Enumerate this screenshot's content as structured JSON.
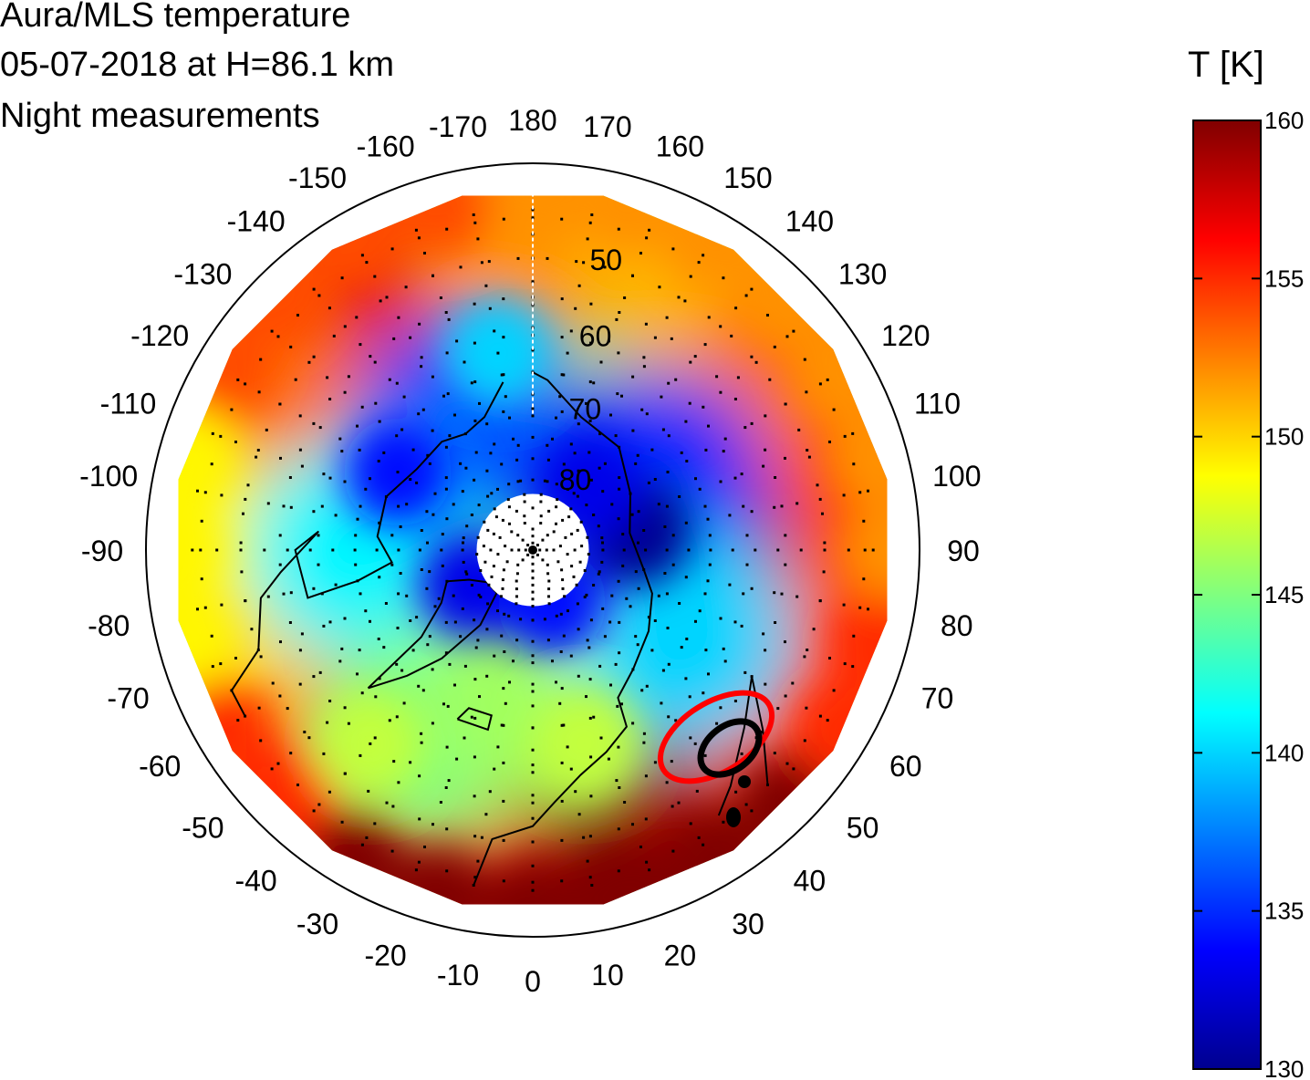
{
  "chart_data": {
    "type": "heatmap",
    "projection": "north-polar-stereographic",
    "title_lines": [
      "Aura/MLS  temperature",
      "05-07-2018 at H=86.1 km",
      "Night measurements"
    ],
    "colorbar": {
      "label": "T [K]",
      "range": [
        130,
        160
      ],
      "ticks": [
        160,
        155,
        150,
        145,
        140,
        135,
        130
      ],
      "colormap": "jet"
    },
    "longitude_labels": [
      "180",
      "170",
      "160",
      "150",
      "140",
      "130",
      "120",
      "110",
      "100",
      "90",
      "80",
      "70",
      "60",
      "50",
      "40",
      "30",
      "20",
      "10",
      "0",
      "-10",
      "-20",
      "-30",
      "-40",
      "-50",
      "-60",
      "-70",
      "-80",
      "-90",
      "-100",
      "-110",
      "-120",
      "-130",
      "-140",
      "-150",
      "-160",
      "-170"
    ],
    "longitude_values": [
      180,
      170,
      160,
      150,
      140,
      130,
      120,
      110,
      100,
      90,
      80,
      70,
      60,
      50,
      40,
      30,
      20,
      10,
      0,
      -10,
      -20,
      -30,
      -40,
      -50,
      -60,
      -70,
      -80,
      -90,
      -100,
      -110,
      -120,
      -130,
      -140,
      -150,
      -160,
      -170
    ],
    "latitude_labels": [
      "50",
      "60",
      "70",
      "80"
    ],
    "latitude_values": [
      50,
      60,
      70,
      80
    ],
    "latitude_range": [
      40,
      90
    ],
    "no_data_polar_cap_lat": 82,
    "temperature_field_samples": [
      {
        "lon": 0,
        "lat": 45,
        "T": 160
      },
      {
        "lon": 20,
        "lat": 45,
        "T": 160
      },
      {
        "lon": -20,
        "lat": 45,
        "T": 157
      },
      {
        "lon": 40,
        "lat": 45,
        "T": 159
      },
      {
        "lon": -50,
        "lat": 45,
        "T": 156
      },
      {
        "lon": -80,
        "lat": 45,
        "T": 150
      },
      {
        "lon": -100,
        "lat": 45,
        "T": 149
      },
      {
        "lon": -130,
        "lat": 45,
        "T": 153
      },
      {
        "lon": -160,
        "lat": 45,
        "T": 157
      },
      {
        "lon": 180,
        "lat": 45,
        "T": 152
      },
      {
        "lon": 150,
        "lat": 45,
        "T": 151
      },
      {
        "lon": 120,
        "lat": 45,
        "T": 153
      },
      {
        "lon": 90,
        "lat": 45,
        "T": 154
      },
      {
        "lon": 60,
        "lat": 45,
        "T": 154
      },
      {
        "lon": 90,
        "lat": 70,
        "T": 131
      },
      {
        "lon": 120,
        "lat": 70,
        "T": 135
      },
      {
        "lon": -150,
        "lat": 70,
        "T": 136
      },
      {
        "lon": -90,
        "lat": 65,
        "T": 141
      },
      {
        "lon": -30,
        "lat": 60,
        "T": 145
      },
      {
        "lon": 0,
        "lat": 70,
        "T": 146
      },
      {
        "lon": 60,
        "lat": 65,
        "T": 140
      }
    ],
    "annotations": [
      {
        "type": "contour",
        "color": "#ff0000",
        "lon": 55,
        "lat": 55
      },
      {
        "type": "contour",
        "color": "#000000",
        "lon": 55,
        "lat": 55
      }
    ],
    "grid": true
  }
}
